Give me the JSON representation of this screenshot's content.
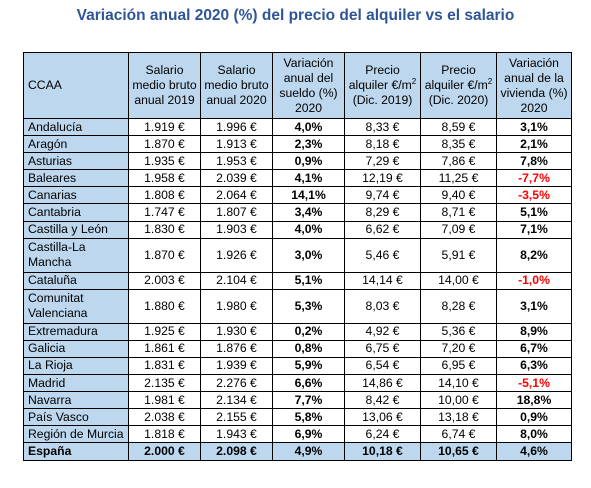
{
  "title": "Variación anual 2020 (%) del precio del alquiler vs el salario",
  "headers": {
    "ccaa": "CCAA",
    "salario_2019": "Salario medio bruto anual 2019",
    "salario_2020": "Salario medio bruto anual 2020",
    "variacion_sueldo": "Variación anual del sueldo (%) 2020",
    "precio_2019_a": "Precio alquiler €/m",
    "precio_2019_sup": "2",
    "precio_2019_b": " (Dic. 2019)",
    "precio_2020_a": "Precio alquiler €/m",
    "precio_2020_sup": "2",
    "precio_2020_b": " (Dic. 2020)",
    "variacion_vivienda": "Variación anual de la vivienda (%) 2020"
  },
  "rows": [
    {
      "region": "Andalucía",
      "s2019": "1.919 €",
      "s2020": "1.996 €",
      "vs": "4,0%",
      "p2019": "8,33 €",
      "p2020": "8,59 €",
      "vv": "3,1%",
      "neg": false
    },
    {
      "region": "Aragón",
      "s2019": "1.870 €",
      "s2020": "1.913 €",
      "vs": "2,3%",
      "p2019": "8,18 €",
      "p2020": "8,35 €",
      "vv": "2,1%",
      "neg": false
    },
    {
      "region": "Asturias",
      "s2019": "1.935 €",
      "s2020": "1.953 €",
      "vs": "0,9%",
      "p2019": "7,29 €",
      "p2020": "7,86 €",
      "vv": "7,8%",
      "neg": false
    },
    {
      "region": "Baleares",
      "s2019": "1.958 €",
      "s2020": "2.039 €",
      "vs": "4,1%",
      "p2019": "12,19 €",
      "p2020": "11,25 €",
      "vv": "-7,7%",
      "neg": true
    },
    {
      "region": "Canarias",
      "s2019": "1.808 €",
      "s2020": "2.064 €",
      "vs": "14,1%",
      "p2019": "9,74 €",
      "p2020": "9,40 €",
      "vv": "-3,5%",
      "neg": true
    },
    {
      "region": "Cantabria",
      "s2019": "1.747 €",
      "s2020": "1.807 €",
      "vs": "3,4%",
      "p2019": "8,29 €",
      "p2020": "8,71 €",
      "vv": "5,1%",
      "neg": false
    },
    {
      "region": "Castilla y León",
      "s2019": "1.830 €",
      "s2020": "1.903 €",
      "vs": "4,0%",
      "p2019": "6,62 €",
      "p2020": "7,09 €",
      "vv": "7,1%",
      "neg": false
    },
    {
      "region": "Castilla-La Mancha",
      "s2019": "1.870 €",
      "s2020": "1.926 €",
      "vs": "3,0%",
      "p2019": "5,46 €",
      "p2020": "5,91 €",
      "vv": "8,2%",
      "neg": false
    },
    {
      "region": "Cataluña",
      "s2019": "2.003 €",
      "s2020": "2.104 €",
      "vs": "5,1%",
      "p2019": "14,14 €",
      "p2020": "14,00 €",
      "vv": "-1,0%",
      "neg": true
    },
    {
      "region": "Comunitat Valenciana",
      "s2019": "1.880 €",
      "s2020": "1.980 €",
      "vs": "5,3%",
      "p2019": "8,03 €",
      "p2020": "8,28 €",
      "vv": "3,1%",
      "neg": false
    },
    {
      "region": "Extremadura",
      "s2019": "1.925 €",
      "s2020": "1.930 €",
      "vs": "0,2%",
      "p2019": "4,92 €",
      "p2020": "5,36 €",
      "vv": "8,9%",
      "neg": false
    },
    {
      "region": "Galicia",
      "s2019": "1.861 €",
      "s2020": "1.876 €",
      "vs": "0,8%",
      "p2019": "6,75 €",
      "p2020": "7,20 €",
      "vv": "6,7%",
      "neg": false
    },
    {
      "region": "La Rioja",
      "s2019": "1.831 €",
      "s2020": "1.939 €",
      "vs": "5,9%",
      "p2019": "6,54 €",
      "p2020": "6,95 €",
      "vv": "6,3%",
      "neg": false
    },
    {
      "region": "Madrid",
      "s2019": "2.135 €",
      "s2020": "2.276 €",
      "vs": "6,6%",
      "p2019": "14,86 €",
      "p2020": "14,10 €",
      "vv": "-5,1%",
      "neg": true
    },
    {
      "region": "Navarra",
      "s2019": "1.981 €",
      "s2020": "2.134 €",
      "vs": "7,7%",
      "p2019": "8,42 €",
      "p2020": "10,00 €",
      "vv": "18,8%",
      "neg": false
    },
    {
      "region": "País Vasco",
      "s2019": "2.038 €",
      "s2020": "2.155 €",
      "vs": "5,8%",
      "p2019": "13,06 €",
      "p2020": "13,18 €",
      "vv": "0,9%",
      "neg": false
    },
    {
      "region": "Región de Murcia",
      "s2019": "1.818 €",
      "s2020": "1.943 €",
      "vs": "6,9%",
      "p2019": "6,24 €",
      "p2020": "6,74 €",
      "vv": "8,0%",
      "neg": false
    }
  ],
  "total": {
    "region": "España",
    "s2019": "2.000 €",
    "s2020": "2.098 €",
    "vs": "4,9%",
    "p2019": "10,18 €",
    "p2020": "10,65 €",
    "vv": "4,6%"
  },
  "colors": {
    "title": "#2F5597",
    "header_bg": "#BDD7EE",
    "negative": "#FF0000"
  }
}
